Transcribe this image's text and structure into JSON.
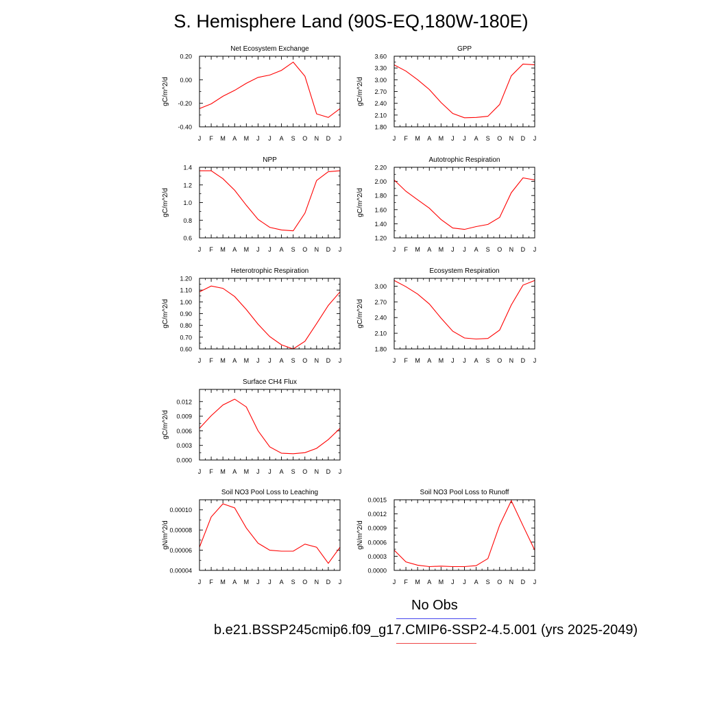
{
  "figure": {
    "title": "S. Hemisphere Land (90S-EQ,180W-180E)"
  },
  "legend": {
    "items": [
      {
        "label": "No Obs",
        "color": "#4444ee"
      },
      {
        "label": "b.e21.BSSP245cmip6.f09_g17.CMIP6-SSP2-4.5.001 (yrs 2025-2049)",
        "color": "#ee4444"
      }
    ]
  },
  "colors": {
    "series": "#ff0000",
    "axis": "#000000"
  },
  "chart_data": [
    {
      "type": "line",
      "title": "Net Ecosystem Exchange",
      "ylabel": "gC/m^2/d",
      "categories": [
        "J",
        "F",
        "M",
        "A",
        "M",
        "J",
        "J",
        "A",
        "S",
        "O",
        "N",
        "D",
        "J"
      ],
      "ylim": [
        -0.4,
        0.2
      ],
      "yticks": [
        "0.20",
        "0.00",
        "-0.20",
        "-0.40"
      ],
      "ytick_values": [
        0.2,
        0.0,
        -0.2,
        -0.4
      ],
      "values": [
        -0.245,
        -0.205,
        -0.14,
        -0.09,
        -0.03,
        0.02,
        0.04,
        0.08,
        0.15,
        0.03,
        -0.29,
        -0.32,
        -0.245
      ]
    },
    {
      "type": "line",
      "title": "GPP",
      "ylabel": "gC/m^2/d",
      "categories": [
        "J",
        "F",
        "M",
        "A",
        "M",
        "J",
        "J",
        "A",
        "S",
        "O",
        "N",
        "D",
        "J"
      ],
      "ylim": [
        1.8,
        3.6
      ],
      "yticks": [
        "3.60",
        "3.30",
        "3.00",
        "2.70",
        "2.40",
        "2.10",
        "1.80"
      ],
      "ytick_values": [
        3.6,
        3.3,
        3.0,
        2.7,
        2.4,
        2.1,
        1.8
      ],
      "values": [
        3.38,
        3.22,
        3.0,
        2.75,
        2.42,
        2.14,
        2.03,
        2.04,
        2.07,
        2.37,
        3.1,
        3.4,
        3.38
      ]
    },
    {
      "type": "line",
      "title": "NPP",
      "ylabel": "gC/m^2/d",
      "categories": [
        "J",
        "F",
        "M",
        "A",
        "M",
        "J",
        "J",
        "A",
        "S",
        "O",
        "N",
        "D",
        "J"
      ],
      "ylim": [
        0.6,
        1.4
      ],
      "yticks": [
        "1.4",
        "1.2",
        "1.0",
        "0.8",
        "0.6"
      ],
      "ytick_values": [
        1.4,
        1.2,
        1.0,
        0.8,
        0.6
      ],
      "values": [
        1.36,
        1.36,
        1.27,
        1.14,
        0.97,
        0.81,
        0.72,
        0.69,
        0.68,
        0.88,
        1.25,
        1.35,
        1.36
      ]
    },
    {
      "type": "line",
      "title": "Autotrophic Respiration",
      "ylabel": "gC/m^2/d",
      "categories": [
        "J",
        "F",
        "M",
        "A",
        "M",
        "J",
        "J",
        "A",
        "S",
        "O",
        "N",
        "D",
        "J"
      ],
      "ylim": [
        1.2,
        2.2
      ],
      "yticks": [
        "2.20",
        "2.00",
        "1.80",
        "1.60",
        "1.40",
        "1.20"
      ],
      "ytick_values": [
        2.2,
        2.0,
        1.8,
        1.6,
        1.4,
        1.2
      ],
      "values": [
        2.02,
        1.86,
        1.74,
        1.62,
        1.46,
        1.34,
        1.32,
        1.36,
        1.39,
        1.49,
        1.84,
        2.05,
        2.02
      ]
    },
    {
      "type": "line",
      "title": "Heterotrophic Respiration",
      "ylabel": "gC/m^2/d",
      "categories": [
        "J",
        "F",
        "M",
        "A",
        "M",
        "J",
        "J",
        "A",
        "S",
        "O",
        "N",
        "D",
        "J"
      ],
      "ylim": [
        0.6,
        1.2
      ],
      "yticks": [
        "1.20",
        "1.10",
        "1.00",
        "0.90",
        "0.80",
        "0.70",
        "0.60"
      ],
      "ytick_values": [
        1.2,
        1.1,
        1.0,
        0.9,
        0.8,
        0.7,
        0.6
      ],
      "values": [
        1.085,
        1.135,
        1.115,
        1.045,
        0.935,
        0.81,
        0.705,
        0.635,
        0.6,
        0.665,
        0.815,
        0.97,
        1.085
      ]
    },
    {
      "type": "line",
      "title": "Ecosystem Respiration",
      "ylabel": "gC/m^2/d",
      "categories": [
        "J",
        "F",
        "M",
        "A",
        "M",
        "J",
        "J",
        "A",
        "S",
        "O",
        "N",
        "D",
        "J"
      ],
      "ylim": [
        1.8,
        3.15
      ],
      "yticks": [
        "3.00",
        "2.70",
        "2.40",
        "2.10",
        "1.80"
      ],
      "ytick_values": [
        3.0,
        2.7,
        2.4,
        2.1,
        1.8
      ],
      "values": [
        3.11,
        2.99,
        2.85,
        2.66,
        2.39,
        2.14,
        2.01,
        1.99,
        2.0,
        2.16,
        2.64,
        3.02,
        3.11
      ]
    },
    {
      "type": "line",
      "title": "Surface CH4 Flux",
      "ylabel": "gC/m^2/d",
      "categories": [
        "J",
        "F",
        "M",
        "A",
        "M",
        "J",
        "J",
        "A",
        "S",
        "O",
        "N",
        "D",
        "J"
      ],
      "ylim": [
        0.0,
        0.0145
      ],
      "yticks": [
        "0.012",
        "0.009",
        "0.006",
        "0.003",
        "0.000"
      ],
      "ytick_values": [
        0.012,
        0.009,
        0.006,
        0.003,
        0.0
      ],
      "values": [
        0.0065,
        0.0091,
        0.0113,
        0.0125,
        0.0109,
        0.006,
        0.0027,
        0.0014,
        0.0013,
        0.0015,
        0.0024,
        0.0042,
        0.0065
      ]
    },
    {
      "type": "line",
      "title": "Soil NO3 Pool Loss to Leaching",
      "ylabel": "gN/m^2/d",
      "categories": [
        "J",
        "F",
        "M",
        "A",
        "M",
        "J",
        "J",
        "A",
        "S",
        "O",
        "N",
        "D",
        "J"
      ],
      "ylim": [
        4e-05,
        0.00011
      ],
      "yticks": [
        "0.00010",
        "0.00008",
        "0.00006",
        "0.00004"
      ],
      "ytick_values": [
        0.0001,
        8e-05,
        6e-05,
        4e-05
      ],
      "values": [
        6.3e-05,
        9.3e-05,
        0.000106,
        0.000102,
        8.2e-05,
        6.7e-05,
        6e-05,
        5.9e-05,
        5.9e-05,
        6.6e-05,
        6.3e-05,
        4.7e-05,
        6.3e-05
      ]
    },
    {
      "type": "line",
      "title": "Soil NO3 Pool Loss to Runoff",
      "ylabel": "gN/m^2/d",
      "categories": [
        "J",
        "F",
        "M",
        "A",
        "M",
        "J",
        "J",
        "A",
        "S",
        "O",
        "N",
        "D",
        "J"
      ],
      "ylim": [
        0.0,
        0.0015
      ],
      "yticks": [
        "0.0015",
        "0.0012",
        "0.0009",
        "0.0006",
        "0.0003",
        "0.0000"
      ],
      "ytick_values": [
        0.0015,
        0.0012,
        0.0009,
        0.0006,
        0.0003,
        0.0
      ],
      "values": [
        0.00043,
        0.00018,
        0.00011,
        8e-05,
        9e-05,
        8e-05,
        8e-05,
        0.0001,
        0.00025,
        0.00096,
        0.00148,
        0.00095,
        0.00043
      ]
    }
  ]
}
